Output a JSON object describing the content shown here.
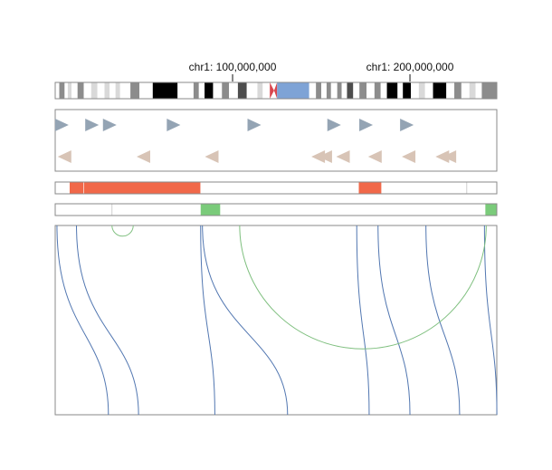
{
  "genome_browser": {
    "chromosome": "chr1",
    "axis_labels": [
      {
        "text": "chr1: 100,000,000",
        "position": 100000000
      },
      {
        "text": "chr1: 200,000,000",
        "position": 200000000
      }
    ],
    "ideogram": {
      "visible_range": [
        0,
        248956422
      ],
      "bands": [
        {
          "start": 0,
          "end": 2300000,
          "stain": "gneg"
        },
        {
          "start": 2300000,
          "end": 5300000,
          "stain": "gpos50"
        },
        {
          "start": 5300000,
          "end": 7100000,
          "stain": "gneg"
        },
        {
          "start": 7100000,
          "end": 9200000,
          "stain": "gpos25"
        },
        {
          "start": 9200000,
          "end": 12600000,
          "stain": "gneg"
        },
        {
          "start": 12600000,
          "end": 16100000,
          "stain": "gpos50"
        },
        {
          "start": 16100000,
          "end": 20300000,
          "stain": "gneg"
        },
        {
          "start": 20300000,
          "end": 23800000,
          "stain": "gpos25"
        },
        {
          "start": 23800000,
          "end": 27800000,
          "stain": "gneg"
        },
        {
          "start": 27800000,
          "end": 30700000,
          "stain": "gpos25"
        },
        {
          "start": 30700000,
          "end": 34000000,
          "stain": "gneg"
        },
        {
          "start": 34000000,
          "end": 36600000,
          "stain": "gpos25"
        },
        {
          "start": 36600000,
          "end": 42400000,
          "stain": "gneg"
        },
        {
          "start": 42400000,
          "end": 47500000,
          "stain": "gpos50"
        },
        {
          "start": 47500000,
          "end": 55000000,
          "stain": "gneg"
        },
        {
          "start": 55000000,
          "end": 69000000,
          "stain": "gpos100"
        },
        {
          "start": 69000000,
          "end": 78000000,
          "stain": "gneg"
        },
        {
          "start": 78000000,
          "end": 81000000,
          "stain": "gpos50"
        },
        {
          "start": 81000000,
          "end": 84200000,
          "stain": "gneg"
        },
        {
          "start": 84200000,
          "end": 89000000,
          "stain": "gpos100"
        },
        {
          "start": 89000000,
          "end": 94000000,
          "stain": "gneg"
        },
        {
          "start": 94000000,
          "end": 98000000,
          "stain": "gpos50"
        },
        {
          "start": 98000000,
          "end": 103000000,
          "stain": "gneg"
        },
        {
          "start": 103000000,
          "end": 108000000,
          "stain": "gpos75"
        },
        {
          "start": 108000000,
          "end": 114000000,
          "stain": "gneg"
        },
        {
          "start": 114000000,
          "end": 117000000,
          "stain": "gpos25"
        },
        {
          "start": 117000000,
          "end": 121000000,
          "stain": "gneg"
        },
        {
          "start": 121000000,
          "end": 123400000,
          "stain": "acen-p"
        },
        {
          "start": 123400000,
          "end": 125100000,
          "stain": "acen-q"
        },
        {
          "start": 125100000,
          "end": 143200000,
          "stain": "gvar"
        },
        {
          "start": 143200000,
          "end": 147000000,
          "stain": "gneg"
        },
        {
          "start": 147000000,
          "end": 150000000,
          "stain": "gpos50"
        },
        {
          "start": 150000000,
          "end": 153000000,
          "stain": "gneg"
        },
        {
          "start": 153000000,
          "end": 155500000,
          "stain": "gpos50"
        },
        {
          "start": 155500000,
          "end": 159000000,
          "stain": "gneg"
        },
        {
          "start": 159000000,
          "end": 161500000,
          "stain": "gpos50"
        },
        {
          "start": 161500000,
          "end": 164500000,
          "stain": "gneg"
        },
        {
          "start": 164500000,
          "end": 168000000,
          "stain": "gpos75"
        },
        {
          "start": 168000000,
          "end": 171500000,
          "stain": "gneg"
        },
        {
          "start": 171500000,
          "end": 175500000,
          "stain": "gpos50"
        },
        {
          "start": 175500000,
          "end": 180000000,
          "stain": "gneg"
        },
        {
          "start": 180000000,
          "end": 183500000,
          "stain": "gpos50"
        },
        {
          "start": 183500000,
          "end": 187000000,
          "stain": "gneg"
        },
        {
          "start": 187000000,
          "end": 193000000,
          "stain": "gpos100"
        },
        {
          "start": 193000000,
          "end": 196000000,
          "stain": "gneg"
        },
        {
          "start": 196000000,
          "end": 200500000,
          "stain": "gpos100"
        },
        {
          "start": 200500000,
          "end": 205000000,
          "stain": "gneg"
        },
        {
          "start": 205000000,
          "end": 208500000,
          "stain": "gpos25"
        },
        {
          "start": 208500000,
          "end": 213000000,
          "stain": "gneg"
        },
        {
          "start": 213000000,
          "end": 220500000,
          "stain": "gpos100"
        },
        {
          "start": 220500000,
          "end": 225000000,
          "stain": "gneg"
        },
        {
          "start": 225000000,
          "end": 229000000,
          "stain": "gpos50"
        },
        {
          "start": 229000000,
          "end": 233500000,
          "stain": "gneg"
        },
        {
          "start": 233500000,
          "end": 237000000,
          "stain": "gpos25"
        },
        {
          "start": 237000000,
          "end": 240500000,
          "stain": "gneg"
        },
        {
          "start": 240500000,
          "end": 248956422,
          "stain": "gpos50"
        }
      ],
      "stain_colors": {
        "gneg": "#ffffff",
        "gpos25": "#d9d9d9",
        "gpos50": "#8c8c8c",
        "gpos75": "#4d4d4d",
        "gpos100": "#000000",
        "gvar": "#7ea3d6",
        "acen": "#d9464e"
      }
    },
    "tracks": {
      "annotations": {
        "forward": [
          3500000,
          20500000,
          30500000,
          66500000,
          112000000,
          157000000,
          175000000,
          198000000
        ],
        "reverse": [
          5500000,
          50000000,
          88500000,
          148500000,
          152500000,
          162500000,
          180500000,
          199500000,
          218500000,
          222500000
        ],
        "forward_color": "#94a4b4",
        "reverse_color": "#d8c4b6"
      },
      "red_segments": {
        "segments": [
          [
            8000000,
            16000000
          ],
          [
            16000000,
            82000000
          ],
          [
            171000000,
            184000000
          ]
        ],
        "faint_ticks": [
          232000000
        ],
        "color": "#f16849"
      },
      "green_segments": {
        "segments": [
          [
            82000000,
            93000000
          ],
          [
            242500000,
            248956422
          ]
        ],
        "faint_ticks": [
          32000000
        ],
        "color": "#7acb7a"
      },
      "connections": {
        "blue_color": "#5277b1",
        "green_color": "#7ebf7e",
        "links": [
          {
            "type": "blue",
            "from": 1000000,
            "to": 30000000
          },
          {
            "type": "blue",
            "from": 12000000,
            "to": 47000000
          },
          {
            "type": "blue",
            "from": 82000000,
            "to": 90000000
          },
          {
            "type": "blue",
            "from": 83000000,
            "to": 131000000
          },
          {
            "type": "blue",
            "from": 170000000,
            "to": 177000000
          },
          {
            "type": "blue",
            "from": 182000000,
            "to": 200000000
          },
          {
            "type": "blue",
            "from": 209000000,
            "to": 228000000
          },
          {
            "type": "blue",
            "from": 242000000,
            "to": 249000000
          },
          {
            "type": "green",
            "from": 32000000,
            "to": 44000000
          },
          {
            "type": "green",
            "from": 104000000,
            "to": 243000000
          }
        ]
      }
    }
  }
}
